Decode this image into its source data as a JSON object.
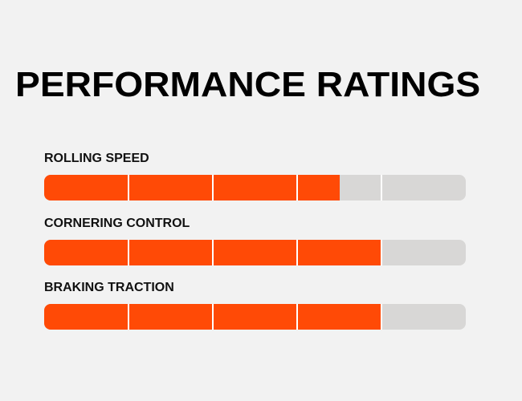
{
  "title": "PERFORMANCE RATINGS",
  "colors": {
    "background": "#f2f2f2",
    "fill": "#ff4a06",
    "track": "#d8d7d6",
    "divider": "#ffffff"
  },
  "scale_max": 5,
  "ratings": [
    {
      "label": "ROLLING SPEED",
      "value": 3.5
    },
    {
      "label": "CORNERING CONTROL",
      "value": 4
    },
    {
      "label": "BRAKING TRACTION",
      "value": 4
    }
  ]
}
